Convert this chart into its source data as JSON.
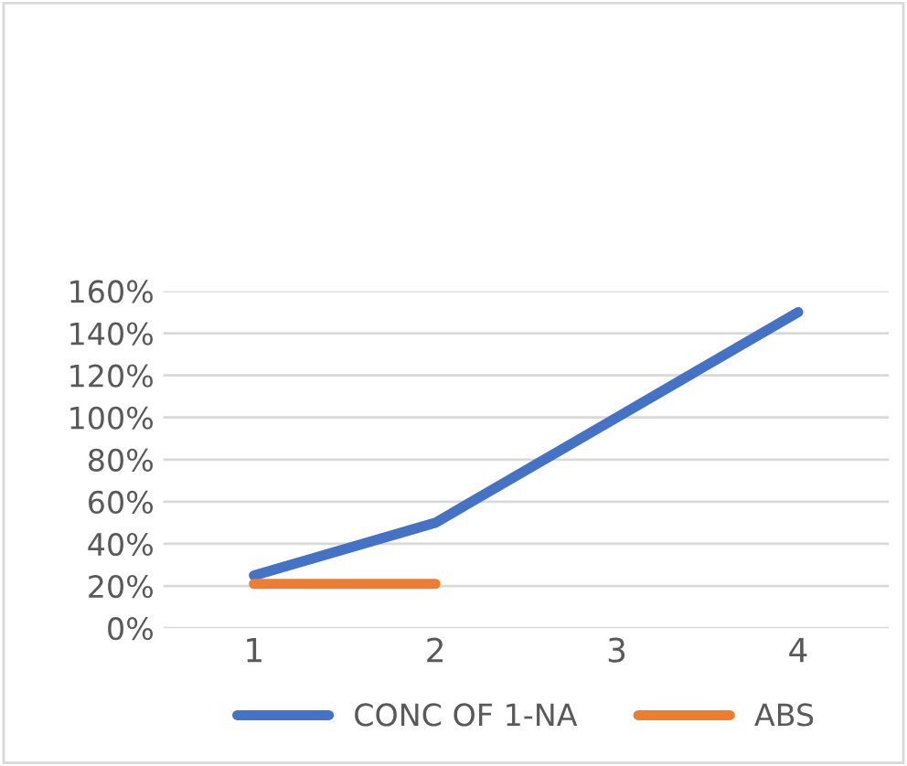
{
  "chart_data": {
    "type": "line",
    "categories": [
      "1",
      "2",
      "3",
      "4"
    ],
    "series": [
      {
        "name": "CONC OF 1-NA",
        "color": "#4472c4",
        "values": [
          25,
          50,
          100,
          150
        ]
      },
      {
        "name": "ABS",
        "color": "#ed7d31",
        "values": [
          21,
          21,
          null,
          null
        ]
      }
    ],
    "ylim": [
      0,
      160
    ],
    "yticks": [
      {
        "value": 0,
        "label": "0%"
      },
      {
        "value": 20,
        "label": "20%"
      },
      {
        "value": 40,
        "label": "40%"
      },
      {
        "value": 60,
        "label": "60%"
      },
      {
        "value": 80,
        "label": "80%"
      },
      {
        "value": 100,
        "label": "100%"
      },
      {
        "value": 120,
        "label": "120%"
      },
      {
        "value": 140,
        "label": "140%"
      },
      {
        "value": 160,
        "label": "160%"
      }
    ],
    "grid": "y",
    "legend": "bottom",
    "marker": "none",
    "line_style": "solid"
  }
}
